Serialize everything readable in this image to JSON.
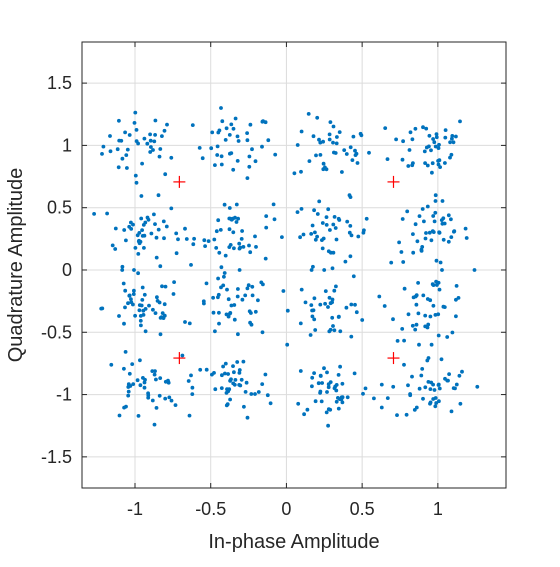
{
  "chart_data": {
    "type": "scatter",
    "title": "",
    "xlabel": "In-phase Amplitude",
    "ylabel": "Quadrature Amplitude",
    "xlim": [
      -1.35,
      1.45
    ],
    "ylim": [
      -1.75,
      1.83
    ],
    "xticks": [
      -1,
      -0.5,
      0,
      0.5,
      1
    ],
    "xtick_labels": [
      "-1",
      "-0.5",
      "0",
      "0.5",
      "1"
    ],
    "yticks": [
      -1.5,
      -1,
      -0.5,
      0,
      0.5,
      1,
      1.5
    ],
    "ytick_labels": [
      "-1.5",
      "-1",
      "-0.5",
      "0",
      "0.5",
      "1",
      "1.5"
    ],
    "grid": true,
    "series": [
      {
        "marker": "dot",
        "color": "#0072BD",
        "description": "received 16-QAM symbols: 16 clusters centered at I,Q in {-1,-0.33,0.33,1} (approx. -0.95,-0.35,0.3,0.95 for I and -0.95,-0.3,0.3,0.95 for Q), spread about 0.13",
        "clusters": [
          {
            "cx": -0.95,
            "cy": 1.0,
            "n": 40
          },
          {
            "cx": -0.35,
            "cy": 1.0,
            "n": 40
          },
          {
            "cx": 0.3,
            "cy": 0.97,
            "n": 40
          },
          {
            "cx": 0.95,
            "cy": 1.0,
            "n": 45
          },
          {
            "cx": -0.95,
            "cy": 0.3,
            "n": 48
          },
          {
            "cx": -0.35,
            "cy": 0.3,
            "n": 45
          },
          {
            "cx": 0.3,
            "cy": 0.3,
            "n": 45
          },
          {
            "cx": 0.95,
            "cy": 0.3,
            "n": 48
          },
          {
            "cx": -0.95,
            "cy": -0.3,
            "n": 48
          },
          {
            "cx": -0.35,
            "cy": -0.3,
            "n": 45
          },
          {
            "cx": 0.3,
            "cy": -0.3,
            "n": 40
          },
          {
            "cx": 0.95,
            "cy": -0.3,
            "n": 45
          },
          {
            "cx": -0.95,
            "cy": -0.95,
            "n": 45
          },
          {
            "cx": -0.35,
            "cy": -0.95,
            "n": 45
          },
          {
            "cx": 0.3,
            "cy": -0.95,
            "n": 45
          },
          {
            "cx": 0.95,
            "cy": -0.95,
            "n": 48
          }
        ],
        "spread": 0.13
      },
      {
        "marker": "plus",
        "color": "#FF0000",
        "description": "reference points",
        "x": [
          -0.707,
          0.707,
          -0.707,
          0.707
        ],
        "y": [
          0.707,
          0.707,
          -0.707,
          -0.707
        ]
      }
    ]
  }
}
